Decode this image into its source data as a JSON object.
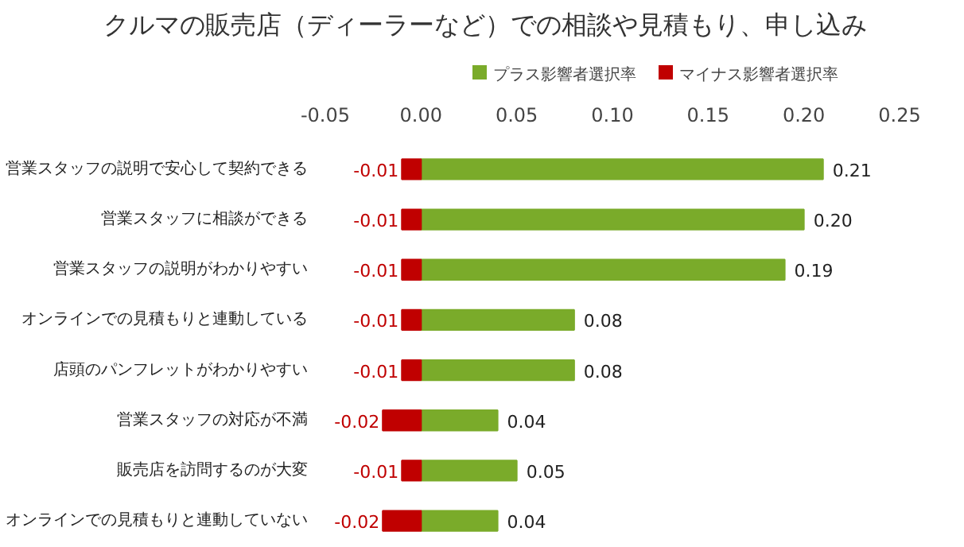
{
  "chart_data": {
    "type": "bar",
    "orientation": "horizontal",
    "title": "クルマの販売店（ディーラーなど）での相談や見積もり、申し込み",
    "categories": [
      "営業スタッフの説明で安心して契約できる",
      "営業スタッフに相談ができる",
      "営業スタッフの説明がわかりやすい",
      "オンラインでの見積もりと連動している",
      "店頭のパンフレットがわかりやすい",
      "営業スタッフの対応が不満",
      "販売店を訪問するのが大変",
      "オンラインでの見積もりと連動していない"
    ],
    "series": [
      {
        "name": "プラス影響者選択率",
        "color": "#7aab2a",
        "values": [
          0.21,
          0.2,
          0.19,
          0.08,
          0.08,
          0.04,
          0.05,
          0.04
        ],
        "value_labels": [
          "0.21",
          "0.20",
          "0.19",
          "0.08",
          "0.08",
          "0.04",
          "0.05",
          "0.04"
        ]
      },
      {
        "name": "マイナス影響者選択率",
        "color": "#c00000",
        "values": [
          -0.01,
          -0.01,
          -0.01,
          -0.01,
          -0.01,
          -0.02,
          -0.01,
          -0.02
        ],
        "value_labels": [
          "-0.01",
          "-0.01",
          "-0.01",
          "-0.01",
          "-0.01",
          "-0.02",
          "-0.01",
          "-0.02"
        ]
      }
    ],
    "xlim": [
      -0.05,
      0.25
    ],
    "xticks": [
      {
        "value": -0.05,
        "label": "-0.05"
      },
      {
        "value": 0,
        "label": "0.00"
      },
      {
        "value": 0.05,
        "label": "0.05"
      },
      {
        "value": 0.1,
        "label": "0.10"
      },
      {
        "value": 0.15,
        "label": "0.15"
      },
      {
        "value": 0.2,
        "label": "0.20"
      },
      {
        "value": 0.25,
        "label": "0.25"
      }
    ],
    "stacked": true,
    "legend": "top"
  }
}
